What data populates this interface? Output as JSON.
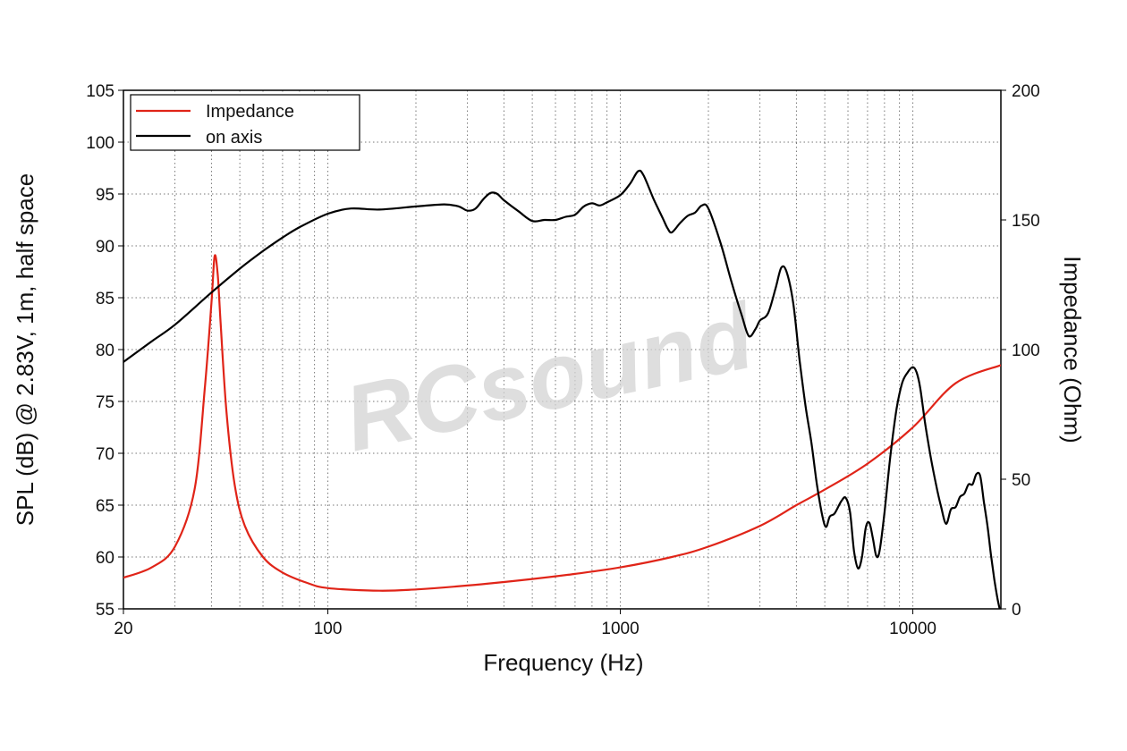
{
  "chart_data": {
    "type": "line",
    "xlabel": "Frequency (Hz)",
    "ylabel_left": "SPL (dB) @ 2.83V, 1m, half space",
    "ylabel_right": "Impedance (Ohm)",
    "x_scale": "log",
    "xlim": [
      20,
      20000
    ],
    "ylim_left": [
      55,
      105
    ],
    "ylim_right": [
      0,
      200
    ],
    "x_ticks": [
      20,
      100,
      1000,
      10000
    ],
    "y_ticks_left": [
      55,
      60,
      65,
      70,
      75,
      80,
      85,
      90,
      95,
      100,
      105
    ],
    "y_ticks_right": [
      0,
      50,
      100,
      150,
      200
    ],
    "grid": true,
    "legend_position": "top-left",
    "watermark": "RCsound",
    "series": [
      {
        "name": "Impedance",
        "axis": "right",
        "color": "#e02418",
        "x": [
          20,
          25,
          30,
          35,
          38,
          40,
          41,
          42,
          43,
          45,
          48,
          52,
          60,
          70,
          85,
          100,
          150,
          200,
          300,
          500,
          700,
          1000,
          1500,
          2000,
          3000,
          4000,
          5000,
          7000,
          10000,
          14000,
          20000
        ],
        "y": [
          12,
          16,
          24,
          46,
          86,
          118,
          136,
          129,
          110,
          76,
          48,
          32,
          20,
          14,
          10,
          8,
          7,
          7.5,
          9,
          11.5,
          13.5,
          16,
          20,
          24,
          32,
          40,
          46,
          56,
          70,
          87,
          94
        ]
      },
      {
        "name": "on axis",
        "axis": "left",
        "color": "#000000",
        "x": [
          20,
          25,
          30,
          40,
          50,
          60,
          70,
          80,
          100,
          120,
          150,
          200,
          250,
          280,
          300,
          320,
          340,
          360,
          380,
          400,
          450,
          500,
          550,
          600,
          650,
          700,
          750,
          800,
          850,
          900,
          1000,
          1080,
          1150,
          1200,
          1300,
          1400,
          1450,
          1500,
          1600,
          1700,
          1800,
          1900,
          2000,
          2200,
          2400,
          2600,
          2750,
          2900,
          3000,
          3200,
          3400,
          3550,
          3700,
          3900,
          4100,
          4300,
          4500,
          4700,
          4900,
          5050,
          5200,
          5400,
          5700,
          5900,
          6100,
          6300,
          6500,
          6700,
          6900,
          7100,
          7300,
          7500,
          7700,
          8000,
          8400,
          8800,
          9200,
          9600,
          10000,
          10300,
          10600,
          11000,
          11500,
          12000,
          12500,
          13000,
          13500,
          14000,
          14500,
          15000,
          15500,
          16000,
          16500,
          17000,
          17500,
          18000,
          18500,
          19000,
          19500,
          20000
        ],
        "y": [
          78.8,
          80.8,
          82.4,
          85.5,
          87.8,
          89.5,
          90.8,
          91.8,
          93.1,
          93.6,
          93.5,
          93.8,
          94.0,
          93.8,
          93.4,
          93.6,
          94.5,
          95.1,
          95.0,
          94.4,
          93.3,
          92.4,
          92.5,
          92.5,
          92.8,
          93.0,
          93.8,
          94.1,
          93.9,
          94.2,
          94.9,
          96.0,
          97.2,
          96.8,
          94.5,
          92.6,
          91.7,
          91.3,
          92.2,
          92.9,
          93.2,
          93.9,
          93.6,
          90.3,
          86.5,
          83.3,
          81.3,
          82.0,
          82.8,
          83.5,
          86.0,
          87.9,
          87.5,
          84.5,
          79.0,
          74.5,
          71.0,
          67.0,
          64.0,
          62.9,
          63.9,
          64.2,
          65.4,
          65.7,
          64.3,
          60.5,
          58.9,
          60.0,
          62.8,
          63.3,
          61.8,
          60.1,
          60.6,
          64.3,
          70.0,
          74.3,
          76.8,
          77.8,
          78.3,
          77.8,
          76.3,
          73.0,
          69.7,
          67.0,
          64.8,
          63.2,
          64.6,
          64.8,
          65.8,
          66.1,
          67.0,
          67.0,
          68.0,
          67.8,
          65.3,
          63.0,
          60.2,
          57.8,
          55.9,
          54.5
        ]
      }
    ]
  }
}
